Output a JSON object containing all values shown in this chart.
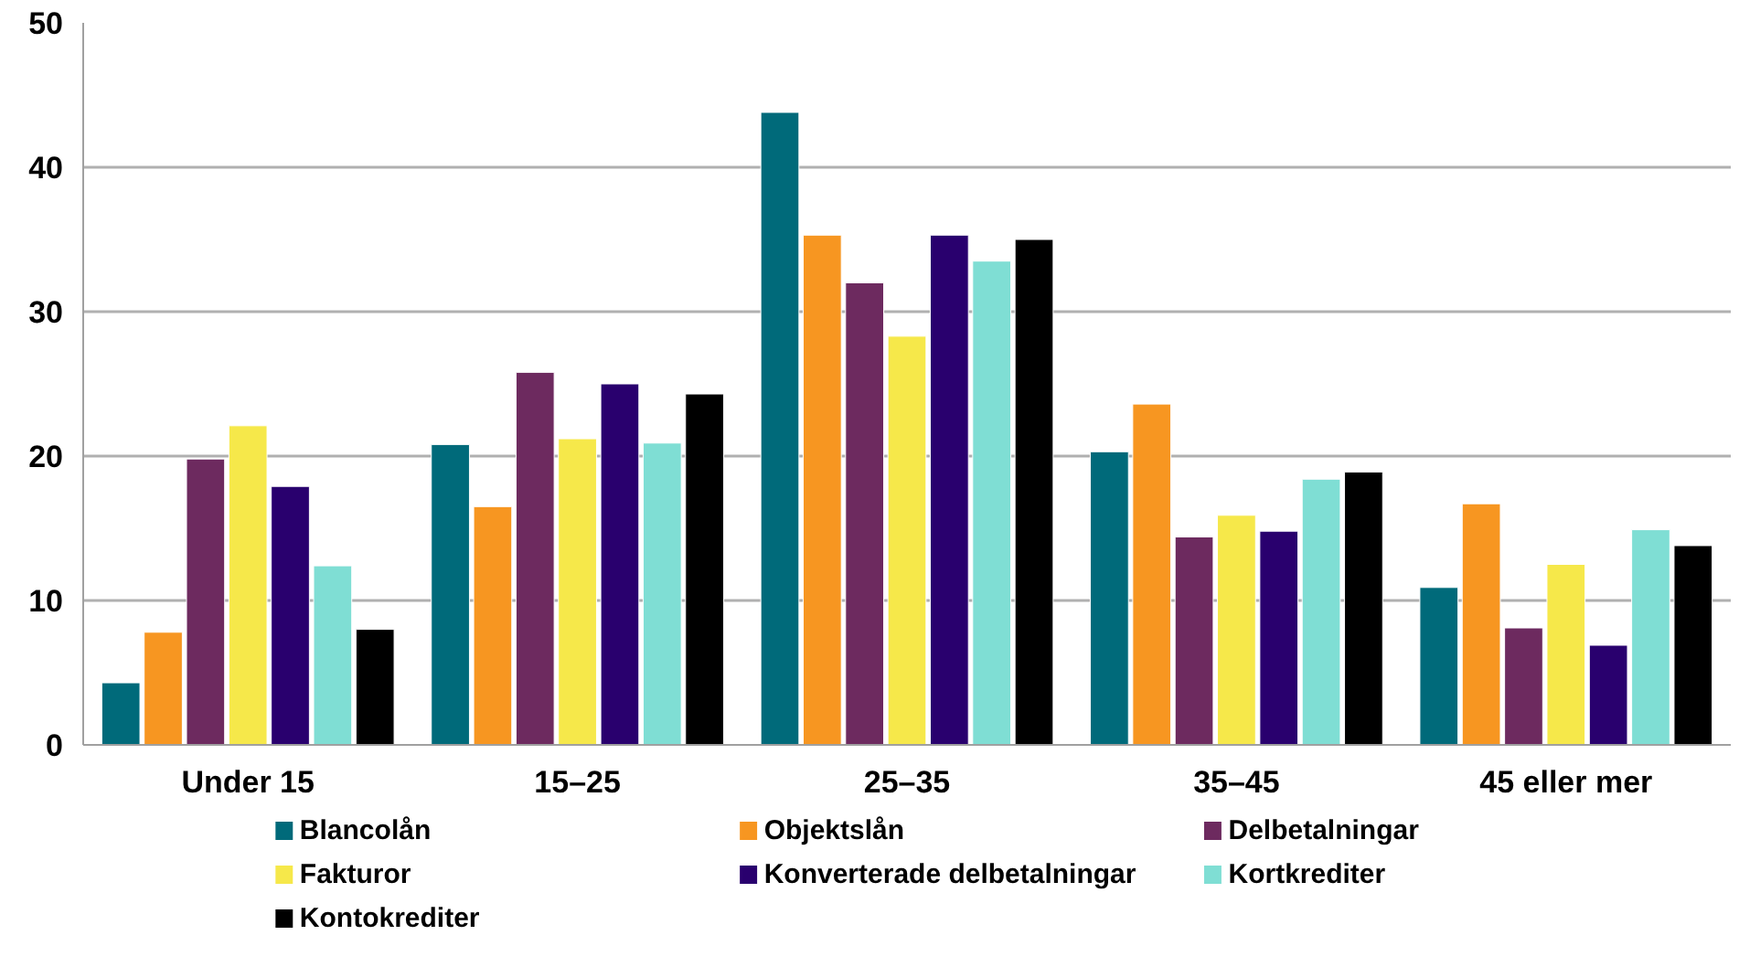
{
  "chart_data": {
    "type": "bar",
    "categories": [
      "Under 15",
      "15–25",
      "25–35",
      "35–45",
      "45 eller mer"
    ],
    "ylim": [
      0,
      50
    ],
    "yticks": [
      0,
      10,
      20,
      30,
      40,
      50
    ],
    "grid": "y",
    "legend": "bottom",
    "series": [
      {
        "name": "Blancolån",
        "color": "#006a7a",
        "values": [
          4.3,
          20.8,
          43.8,
          20.3,
          10.9
        ]
      },
      {
        "name": "Objektslån",
        "color": "#f79621",
        "values": [
          7.8,
          16.5,
          35.3,
          23.6,
          16.7
        ]
      },
      {
        "name": "Delbetalningar",
        "color": "#6d2a5f",
        "values": [
          19.8,
          25.8,
          32.0,
          14.4,
          8.1
        ]
      },
      {
        "name": "Fakturor",
        "color": "#f6e84a",
        "values": [
          22.1,
          21.2,
          28.3,
          15.9,
          12.5
        ]
      },
      {
        "name": "Konverterade delbetalningar",
        "color": "#29006e",
        "values": [
          17.9,
          25.0,
          35.3,
          14.8,
          6.9
        ]
      },
      {
        "name": "Kortkrediter",
        "color": "#7fded4",
        "values": [
          12.4,
          20.9,
          33.5,
          18.4,
          14.9
        ]
      },
      {
        "name": "Kontokrediter",
        "color": "#000000",
        "values": [
          8.0,
          24.3,
          35.0,
          18.9,
          13.8
        ]
      }
    ]
  }
}
